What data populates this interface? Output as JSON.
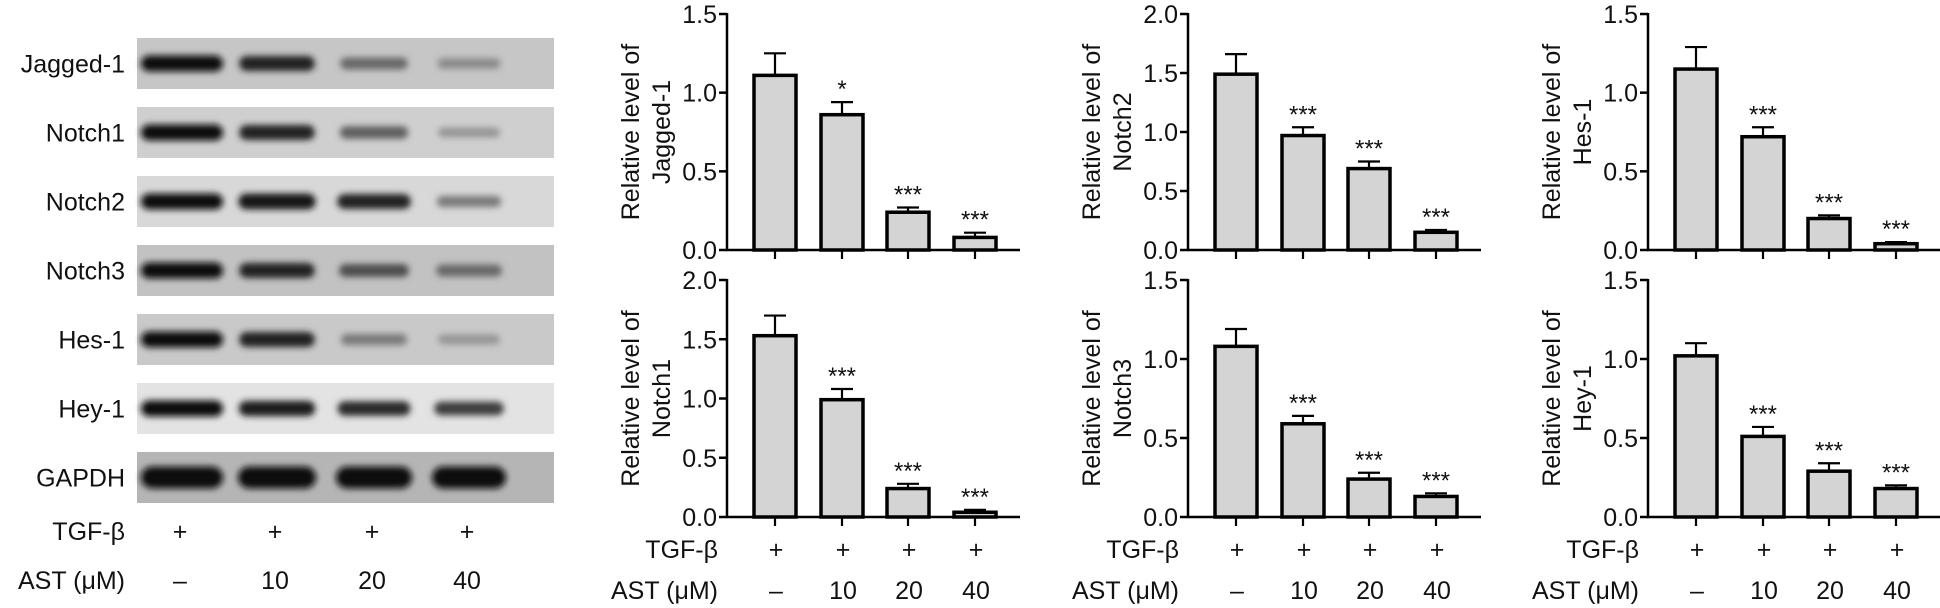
{
  "western_blot": {
    "proteins": [
      "Jagged-1",
      "Notch1",
      "Notch2",
      "Notch3",
      "Hes-1",
      "Hey-1",
      "GAPDH"
    ],
    "band_intensity": [
      [
        1.0,
        0.85,
        0.45,
        0.25
      ],
      [
        1.0,
        0.85,
        0.5,
        0.18
      ],
      [
        1.0,
        0.95,
        0.85,
        0.35
      ],
      [
        1.0,
        0.85,
        0.6,
        0.45
      ],
      [
        1.0,
        0.85,
        0.35,
        0.18
      ],
      [
        1.0,
        0.9,
        0.8,
        0.7
      ],
      [
        1.0,
        1.0,
        1.0,
        1.0
      ]
    ],
    "background_colors": [
      "#c6c6c6",
      "#cfcfcf",
      "#d8d8d8",
      "#c2c2c2",
      "#c9c9c9",
      "#e3e3e3",
      "#b5b5b5"
    ],
    "treatment_rows": [
      {
        "label": "TGF-β",
        "values": [
          "+",
          "+",
          "+",
          "+"
        ]
      },
      {
        "label": "AST (μM)",
        "values": [
          "–",
          "10",
          "20",
          "40"
        ]
      }
    ]
  },
  "chart_data": [
    {
      "type": "bar",
      "id": "jagged1",
      "ylabel_line1": "Relative level of",
      "ylabel_line2": "Jagged-1",
      "ylim": [
        0,
        1.5
      ],
      "yticks": [
        "0.0",
        "0.5",
        "1.0",
        "1.5"
      ],
      "ytick_values": [
        0,
        0.5,
        1.0,
        1.5
      ],
      "categories": [
        "–",
        "10",
        "20",
        "40"
      ],
      "values": [
        1.11,
        0.86,
        0.24,
        0.08
      ],
      "error_top": [
        1.25,
        0.94,
        0.27,
        0.11
      ],
      "significance": [
        "",
        "*",
        "***",
        "***"
      ],
      "show_treatments": false
    },
    {
      "type": "bar",
      "id": "notch2",
      "ylabel_line1": "Relative level of",
      "ylabel_line2": "Notch2",
      "ylim": [
        0,
        2.0
      ],
      "yticks": [
        "0.0",
        "0.5",
        "1.0",
        "1.5",
        "2.0"
      ],
      "ytick_values": [
        0,
        0.5,
        1.0,
        1.5,
        2.0
      ],
      "categories": [
        "–",
        "10",
        "20",
        "40"
      ],
      "values": [
        1.49,
        0.97,
        0.69,
        0.15
      ],
      "error_top": [
        1.66,
        1.04,
        0.75,
        0.17
      ],
      "significance": [
        "",
        "***",
        "***",
        "***"
      ],
      "show_treatments": false
    },
    {
      "type": "bar",
      "id": "hes1",
      "ylabel_line1": "Relative level of",
      "ylabel_line2": "Hes-1",
      "ylim": [
        0,
        1.5
      ],
      "yticks": [
        "0.0",
        "0.5",
        "1.0",
        "1.5"
      ],
      "ytick_values": [
        0,
        0.5,
        1.0,
        1.5
      ],
      "categories": [
        "–",
        "10",
        "20",
        "40"
      ],
      "values": [
        1.15,
        0.72,
        0.2,
        0.04
      ],
      "error_top": [
        1.29,
        0.78,
        0.22,
        0.05
      ],
      "significance": [
        "",
        "***",
        "***",
        "***"
      ],
      "show_treatments": false
    },
    {
      "type": "bar",
      "id": "notch1",
      "ylabel_line1": "Relative level of",
      "ylabel_line2": "Notch1",
      "ylim": [
        0,
        2.0
      ],
      "yticks": [
        "0.0",
        "0.5",
        "1.0",
        "1.5",
        "2.0"
      ],
      "ytick_values": [
        0,
        0.5,
        1.0,
        1.5,
        2.0
      ],
      "categories": [
        "–",
        "10",
        "20",
        "40"
      ],
      "values": [
        1.53,
        0.99,
        0.24,
        0.04
      ],
      "error_top": [
        1.7,
        1.08,
        0.28,
        0.06
      ],
      "significance": [
        "",
        "***",
        "***",
        "***"
      ],
      "show_treatments": true,
      "treatment_rows": [
        {
          "label": "TGF-β",
          "values": [
            "+",
            "+",
            "+",
            "+"
          ]
        },
        {
          "label": "AST (μM)",
          "values": [
            "–",
            "10",
            "20",
            "40"
          ]
        }
      ]
    },
    {
      "type": "bar",
      "id": "notch3",
      "ylabel_line1": "Relative level of",
      "ylabel_line2": "Notch3",
      "ylim": [
        0,
        1.5
      ],
      "yticks": [
        "0.0",
        "0.5",
        "1.0",
        "1.5"
      ],
      "ytick_values": [
        0,
        0.5,
        1.0,
        1.5
      ],
      "categories": [
        "–",
        "10",
        "20",
        "40"
      ],
      "values": [
        1.08,
        0.59,
        0.24,
        0.13
      ],
      "error_top": [
        1.19,
        0.64,
        0.28,
        0.15
      ],
      "significance": [
        "",
        "***",
        "***",
        "***"
      ],
      "show_treatments": true,
      "treatment_rows": [
        {
          "label": "TGF-β",
          "values": [
            "+",
            "+",
            "+",
            "+"
          ]
        },
        {
          "label": "AST (μM)",
          "values": [
            "–",
            "10",
            "20",
            "40"
          ]
        }
      ]
    },
    {
      "type": "bar",
      "id": "hey1",
      "ylabel_line1": "Relative level of",
      "ylabel_line2": "Hey-1",
      "ylim": [
        0,
        1.5
      ],
      "yticks": [
        "0.0",
        "0.5",
        "1.0",
        "1.5"
      ],
      "ytick_values": [
        0,
        0.5,
        1.0,
        1.5
      ],
      "categories": [
        "–",
        "10",
        "20",
        "40"
      ],
      "values": [
        1.02,
        0.51,
        0.29,
        0.18
      ],
      "error_top": [
        1.1,
        0.57,
        0.34,
        0.2
      ],
      "significance": [
        "",
        "***",
        "***",
        "***"
      ],
      "show_treatments": true,
      "treatment_rows": [
        {
          "label": "TGF-β",
          "values": [
            "+",
            "+",
            "+",
            "+"
          ]
        },
        {
          "label": "AST (μM)",
          "values": [
            "–",
            "10",
            "20",
            "40"
          ]
        }
      ]
    }
  ],
  "colors": {
    "bar_fill": "#d4d4d4",
    "stroke": "#000000",
    "text": "#111111",
    "band": "#0a0a0a"
  }
}
